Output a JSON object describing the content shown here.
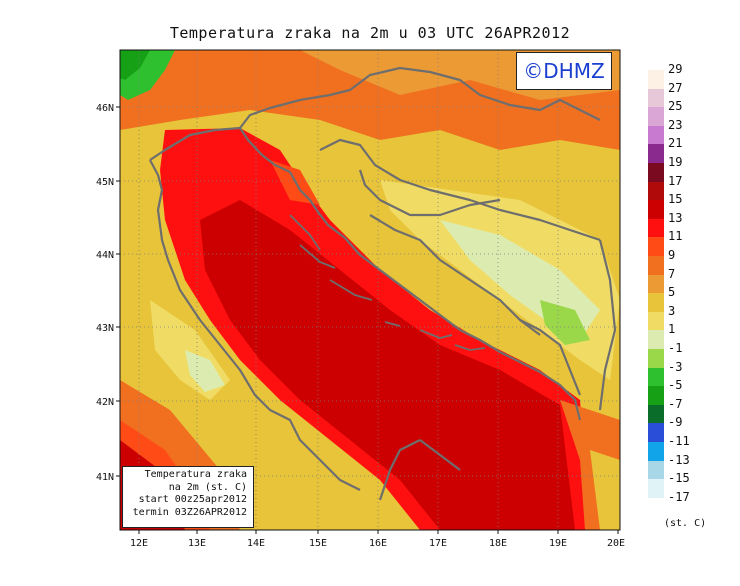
{
  "title": "Temperatura zraka na 2m u 03 UTC 26APR2012",
  "logo": "©DHMZ",
  "info_box": {
    "line1": "Temperatura zraka",
    "line2": "na 2m (st. C)",
    "line3": "start 00z25apr2012",
    "line4": "termin 03Z26APR2012"
  },
  "axes": {
    "x_labels": [
      "12E",
      "13E",
      "14E",
      "15E",
      "16E",
      "17E",
      "18E",
      "19E",
      "20E"
    ],
    "y_labels": [
      "41N",
      "42N",
      "43N",
      "44N",
      "45N",
      "46N"
    ]
  },
  "legend": {
    "unit": "(st. C)",
    "levels": [
      {
        "label": "29",
        "color": "#fdf0e4"
      },
      {
        "label": "27",
        "color": "#e6c8d8"
      },
      {
        "label": "25",
        "color": "#d9a6d6"
      },
      {
        "label": "23",
        "color": "#c77ad0"
      },
      {
        "label": "21",
        "color": "#8b2a8e"
      },
      {
        "label": "19",
        "color": "#7a0a20"
      },
      {
        "label": "17",
        "color": "#b00a0a"
      },
      {
        "label": "15",
        "color": "#cc0000"
      },
      {
        "label": "13",
        "color": "#ff1010"
      },
      {
        "label": "11",
        "color": "#ff4b16"
      },
      {
        "label": "9",
        "color": "#f07020"
      },
      {
        "label": "7",
        "color": "#ec9a34"
      },
      {
        "label": "5",
        "color": "#e8c43a"
      },
      {
        "label": "3",
        "color": "#f0dc64"
      },
      {
        "label": "1",
        "color": "#dcecb0"
      },
      {
        "label": "-1",
        "color": "#9ad84a"
      },
      {
        "label": "-3",
        "color": "#2ec02e"
      },
      {
        "label": "-5",
        "color": "#16a016"
      },
      {
        "label": "-7",
        "color": "#0a6e2a"
      },
      {
        "label": "-9",
        "color": "#2a4ed8"
      },
      {
        "label": "-11",
        "color": "#12a4e8"
      },
      {
        "label": "-13",
        "color": "#a8d8e8"
      },
      {
        "label": "-15",
        "color": "#e0f4f8"
      },
      {
        "label": "-17",
        "color": "#ffffff"
      }
    ]
  }
}
